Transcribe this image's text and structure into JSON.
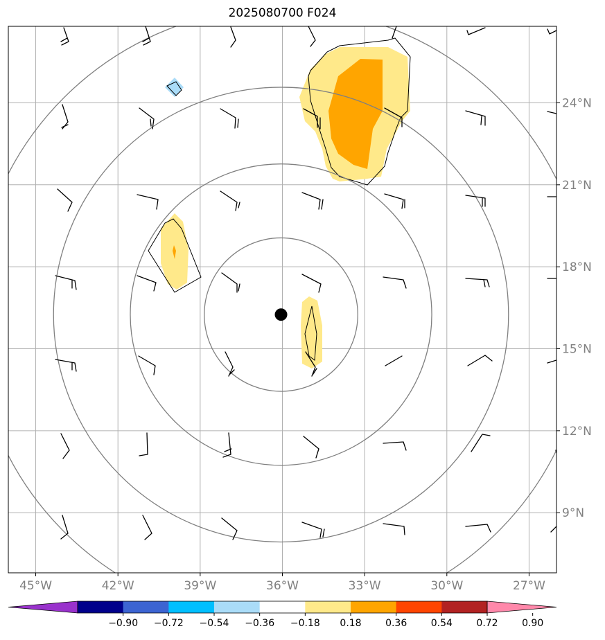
{
  "title": "2025080700 F024",
  "map": {
    "lon_range": [
      -46,
      -26
    ],
    "lat_range": [
      6.8,
      26.8
    ],
    "lon_ticks": [
      {
        "value": -45,
        "label": "45°W"
      },
      {
        "value": -42,
        "label": "42°W"
      },
      {
        "value": -39,
        "label": "39°W"
      },
      {
        "value": -36,
        "label": "36°W"
      },
      {
        "value": -33,
        "label": "33°W"
      },
      {
        "value": -30,
        "label": "30°W"
      },
      {
        "value": -27,
        "label": "27°W"
      }
    ],
    "lat_ticks": [
      {
        "value": 9,
        "label": "9°N"
      },
      {
        "value": 12,
        "label": "12°N"
      },
      {
        "value": 15,
        "label": "15°N"
      },
      {
        "value": 18,
        "label": "18°N"
      },
      {
        "value": 21,
        "label": "21°N"
      },
      {
        "value": 24,
        "label": "24°N"
      }
    ],
    "storm_center": {
      "lon": -36.05,
      "lat": 16.25
    },
    "range_ring_radii_deg": [
      2.8,
      5.5,
      8.3,
      11.2
    ],
    "colors": {
      "grid": "#b0b0b0",
      "ring": "#808080",
      "tick_label": "#808080",
      "light_yellow": "#ffe98a",
      "orange": "#ffa500",
      "light_blue": "#aadcf8"
    }
  },
  "colorbar": {
    "ticks": [
      "−0.90",
      "−0.72",
      "−0.54",
      "−0.36",
      "−0.18",
      "0.18",
      "0.36",
      "0.54",
      "0.72",
      "0.90"
    ],
    "colors": [
      "#9932cc",
      "#00008b",
      "#3c64d2",
      "#00bfff",
      "#aadcf8",
      "#ffffff",
      "#ffe98a",
      "#ffa500",
      "#ff4500",
      "#b22222",
      "#ff88aa"
    ]
  }
}
